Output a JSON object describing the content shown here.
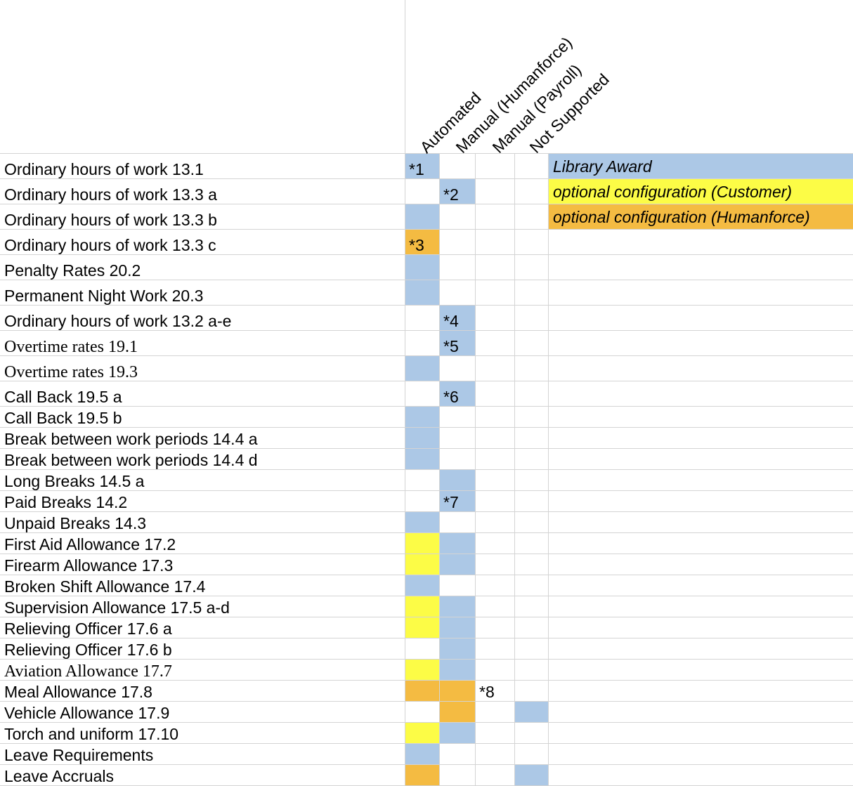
{
  "colors": {
    "automated": "#acc8e6",
    "customer": "#fcfc46",
    "humanforce": "#f4bb42",
    "grid": "#d4d4d4"
  },
  "headers": [
    "Automated",
    "Manual (Humanforce)",
    "Manual (Payroll)",
    "Not Supported"
  ],
  "legend": [
    {
      "label": "Library Award",
      "color": "#acc8e6"
    },
    {
      "label": "optional configuration (Customer)",
      "color": "#fcfc46"
    },
    {
      "label": "optional configuration (Humanforce)",
      "color": "#f4bb42"
    }
  ],
  "rows": [
    {
      "label": "Ordinary hours of work 13.1",
      "fills": [
        "b",
        "",
        "",
        ""
      ],
      "note": {
        "col": 0,
        "text": "*1"
      }
    },
    {
      "label": "Ordinary hours of work 13.3 a",
      "fills": [
        "",
        "b",
        "",
        ""
      ],
      "note": {
        "col": 1,
        "text": "*2"
      }
    },
    {
      "label": "Ordinary hours of work 13.3 b",
      "fills": [
        "b",
        "",
        "",
        ""
      ]
    },
    {
      "label": "Ordinary hours of work 13.3 c",
      "fills": [
        "o",
        "",
        "",
        ""
      ],
      "note": {
        "col": 0,
        "text": "*3"
      }
    },
    {
      "label": "Penalty Rates 20.2",
      "fills": [
        "b",
        "",
        "",
        ""
      ]
    },
    {
      "label": "Permanent Night Work 20.3",
      "fills": [
        "b",
        "",
        "",
        ""
      ]
    },
    {
      "label": "Ordinary hours of work 13.2 a-e",
      "fills": [
        "",
        "b",
        "",
        ""
      ],
      "note": {
        "col": 1,
        "text": "*4"
      }
    },
    {
      "label": "Overtime rates 19.1",
      "serif": true,
      "fills": [
        "",
        "b",
        "",
        ""
      ],
      "note": {
        "col": 1,
        "text": "*5"
      }
    },
    {
      "label": "Overtime rates 19.3",
      "serif": true,
      "fills": [
        "b",
        "",
        "",
        ""
      ]
    },
    {
      "label": "Call Back 19.5 a",
      "fills": [
        "",
        "b",
        "",
        ""
      ],
      "note": {
        "col": 1,
        "text": "*6"
      }
    },
    {
      "label": "Call Back 19.5 b",
      "fills": [
        "b",
        "",
        "",
        ""
      ]
    },
    {
      "label": "Break between work periods 14.4 a",
      "fills": [
        "b",
        "",
        "",
        ""
      ]
    },
    {
      "label": "Break between work periods 14.4 d",
      "fills": [
        "b",
        "",
        "",
        ""
      ]
    },
    {
      "label": "Long Breaks 14.5 a",
      "fills": [
        "",
        "b",
        "",
        ""
      ]
    },
    {
      "label": "Paid Breaks 14.2",
      "fills": [
        "",
        "b",
        "",
        ""
      ],
      "note": {
        "col": 1,
        "text": "*7"
      }
    },
    {
      "label": "Unpaid Breaks 14.3",
      "fills": [
        "b",
        "",
        "",
        ""
      ]
    },
    {
      "label": "First Aid Allowance 17.2",
      "fills": [
        "y",
        "b",
        "",
        ""
      ]
    },
    {
      "label": "Firearm Allowance 17.3",
      "fills": [
        "y",
        "b",
        "",
        ""
      ]
    },
    {
      "label": "Broken Shift Allowance 17.4",
      "fills": [
        "b",
        "",
        "",
        ""
      ]
    },
    {
      "label": "Supervision Allowance 17.5 a-d",
      "fills": [
        "y",
        "b",
        "",
        ""
      ]
    },
    {
      "label": "Relieving Officer 17.6 a",
      "fills": [
        "y",
        "b",
        "",
        ""
      ]
    },
    {
      "label": "Relieving Officer 17.6 b",
      "fills": [
        "",
        "b",
        "",
        ""
      ]
    },
    {
      "label": "Aviation Allowance 17.7",
      "serif": true,
      "fills": [
        "y",
        "b",
        "",
        ""
      ]
    },
    {
      "label": "Meal Allowance 17.8",
      "fills": [
        "o",
        "o",
        "",
        ""
      ],
      "note": {
        "col": 2,
        "text": "*8"
      }
    },
    {
      "label": "Vehicle Allowance 17.9",
      "fills": [
        "",
        "o",
        "",
        "b"
      ]
    },
    {
      "label": "Torch and uniform 17.10",
      "fills": [
        "y",
        "b",
        "",
        ""
      ]
    },
    {
      "label": "Leave Requirements",
      "fills": [
        "b",
        "",
        "",
        ""
      ]
    },
    {
      "label": "Leave Accruals",
      "fills": [
        "o",
        "",
        "",
        "b"
      ]
    }
  ]
}
